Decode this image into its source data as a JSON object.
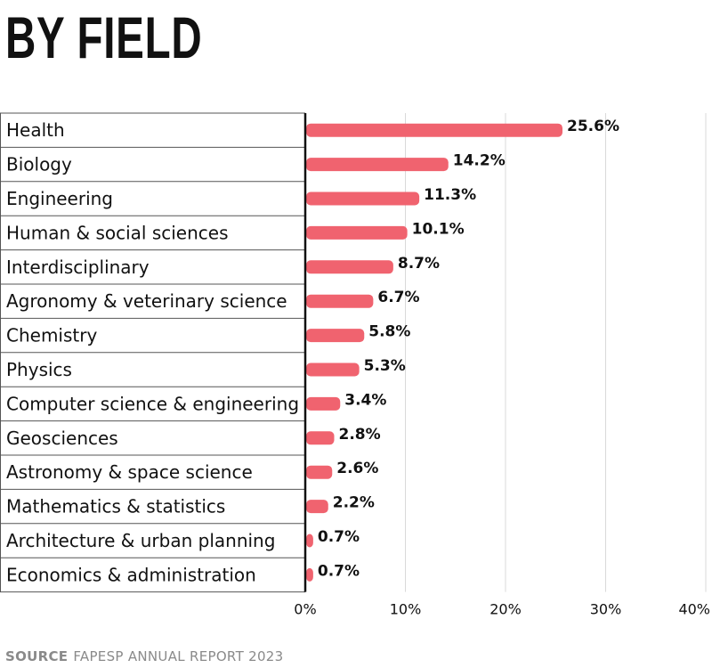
{
  "header": {
    "title": "BY FIELD"
  },
  "footer": {
    "source_label": "SOURCE",
    "source_text": "FAPESP ANNUAL REPORT 2023"
  },
  "colors": {
    "bar": "#f0636f",
    "grid": "#d9d9d9",
    "axis": "#111111",
    "rule": "#555555"
  },
  "chart_data": {
    "type": "bar",
    "orientation": "horizontal",
    "title": "BY FIELD",
    "xlim": [
      0,
      40
    ],
    "xticks": [
      0,
      10,
      20,
      30,
      40
    ],
    "xtick_labels": [
      "0%",
      "10%",
      "20%",
      "30%",
      "40%"
    ],
    "grid": true,
    "categories": [
      "Health",
      "Biology",
      "Engineering",
      "Human & social sciences",
      "Interdisciplinary",
      "Agronomy & veterinary science",
      "Chemistry",
      "Physics",
      "Computer science & engineering",
      "Geosciences",
      "Astronomy & space science",
      "Mathematics & statistics",
      "Architecture & urban planning",
      "Economics & administration"
    ],
    "values": [
      25.6,
      14.2,
      11.3,
      10.1,
      8.7,
      6.7,
      5.8,
      5.3,
      3.4,
      2.8,
      2.6,
      2.2,
      0.7,
      0.7
    ],
    "value_labels": [
      "25.6%",
      "14.2%",
      "11.3%",
      "10.1%",
      "8.7%",
      "6.7%",
      "5.8%",
      "5.3%",
      "3.4%",
      "2.8%",
      "2.6%",
      "2.2%",
      "0.7%",
      "0.7%"
    ]
  }
}
